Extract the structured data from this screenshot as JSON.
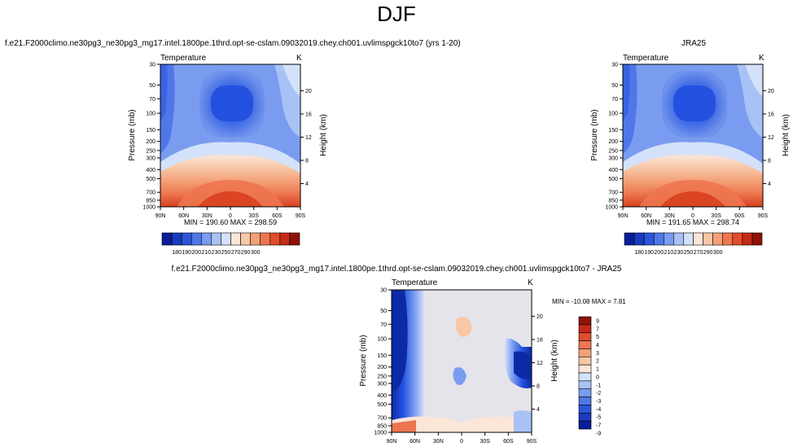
{
  "main_title": "DJF",
  "panels": [
    {
      "id": "model",
      "title": "f.e21.F2000climo.ne30pg3_ne30pg3_mg17.intel.1800pe.1thrd.opt-se-cslam.09032019.chey.ch001.uvlimspgck10to7 (yrs 1-20)",
      "left_label": "Temperature",
      "right_label": "K",
      "ylabel": "Pressure (mb)",
      "ylabel_right": "Height (km)",
      "stats": "MIN = 190.60   MAX = 298.59",
      "cbar_labels": [
        "180",
        "190",
        "200",
        "210",
        "230",
        "250",
        "270",
        "290",
        "300"
      ]
    },
    {
      "id": "obs",
      "title": "JRA25",
      "left_label": "Temperature",
      "right_label": "K",
      "ylabel": "Pressure (mb)",
      "ylabel_right": "Height (km)",
      "stats": "MIN = 191.65   MAX = 298.74",
      "cbar_labels": [
        "180",
        "190",
        "200",
        "210",
        "230",
        "250",
        "270",
        "290",
        "300"
      ]
    },
    {
      "id": "diff",
      "title": "f.e21.F2000climo.ne30pg3_ne30pg3_mg17.intel.1800pe.1thrd.opt-se-cslam.09032019.chey.ch001.uvlimspgck10to7 - JRA25",
      "left_label": "Temperature",
      "right_label": "K",
      "ylabel": "Pressure (mb)",
      "ylabel_right": "Height (km)",
      "stats": "MIN = -10.08   MAX =   7.81",
      "cbar_labels": [
        "9",
        "7",
        "5",
        "4",
        "3",
        "2",
        "1",
        "0",
        "-1",
        "-2",
        "-3",
        "-4",
        "-5",
        "-7",
        "-9"
      ]
    }
  ],
  "chart_data": [
    {
      "type": "heatmap",
      "panel": "model",
      "x_tick_labels": [
        "90N",
        "60N",
        "30N",
        "0",
        "30S",
        "60S",
        "90S"
      ],
      "y_tick_labels": [
        "30",
        "50",
        "70",
        "100",
        "150",
        "200",
        "250",
        "300",
        "400",
        "500",
        "700",
        "850",
        "1000"
      ],
      "y_right_tick_labels": [
        "20",
        "16",
        "12",
        "8",
        "4"
      ],
      "y_scale": "log pressure (inverted)",
      "xlim": [
        90,
        -90
      ],
      "ylim": [
        1000,
        30
      ],
      "min": 190.6,
      "max": 298.59,
      "levels": [
        180,
        190,
        200,
        210,
        230,
        250,
        270,
        290,
        300
      ]
    },
    {
      "type": "heatmap",
      "panel": "obs",
      "x_tick_labels": [
        "90N",
        "60N",
        "30N",
        "0",
        "30S",
        "60S",
        "90S"
      ],
      "y_tick_labels": [
        "30",
        "50",
        "70",
        "100",
        "150",
        "200",
        "250",
        "300",
        "400",
        "500",
        "700",
        "850",
        "1000"
      ],
      "y_right_tick_labels": [
        "20",
        "16",
        "12",
        "8",
        "4"
      ],
      "y_scale": "log pressure (inverted)",
      "xlim": [
        90,
        -90
      ],
      "ylim": [
        1000,
        30
      ],
      "min": 191.65,
      "max": 298.74,
      "levels": [
        180,
        190,
        200,
        210,
        230,
        250,
        270,
        290,
        300
      ]
    },
    {
      "type": "heatmap",
      "panel": "diff",
      "x_tick_labels": [
        "90N",
        "60N",
        "30N",
        "0",
        "30S",
        "60S",
        "90S"
      ],
      "y_tick_labels": [
        "30",
        "50",
        "70",
        "100",
        "150",
        "200",
        "250",
        "300",
        "400",
        "500",
        "700",
        "850",
        "1000"
      ],
      "y_right_tick_labels": [
        "20",
        "16",
        "12",
        "8",
        "4"
      ],
      "y_scale": "log pressure (inverted)",
      "xlim": [
        90,
        -90
      ],
      "ylim": [
        1000,
        30
      ],
      "min": -10.08,
      "max": 7.81,
      "levels": [
        -9,
        -7,
        -5,
        -4,
        -3,
        -2,
        -1,
        0,
        1,
        2,
        3,
        4,
        5,
        7,
        9
      ]
    }
  ],
  "colors": {
    "temp_cbar": [
      "#0a1e9a",
      "#1a3bbf",
      "#2c55dc",
      "#4f77e8",
      "#7a9cf0",
      "#a8c2f6",
      "#d4e1fa",
      "#fbe6d8",
      "#f8c7a6",
      "#f3a078",
      "#ed764f",
      "#e04d2c",
      "#c52a18",
      "#8f1209"
    ],
    "diff_cbar": [
      "#8f1209",
      "#c52a18",
      "#e04d2c",
      "#ed764f",
      "#f3a078",
      "#f8c7a6",
      "#fbe6d8",
      "#d4e1fa",
      "#a8c2f6",
      "#7a9cf0",
      "#4f77e8",
      "#2c55dc",
      "#1a3bbf",
      "#0a1e9a"
    ]
  }
}
